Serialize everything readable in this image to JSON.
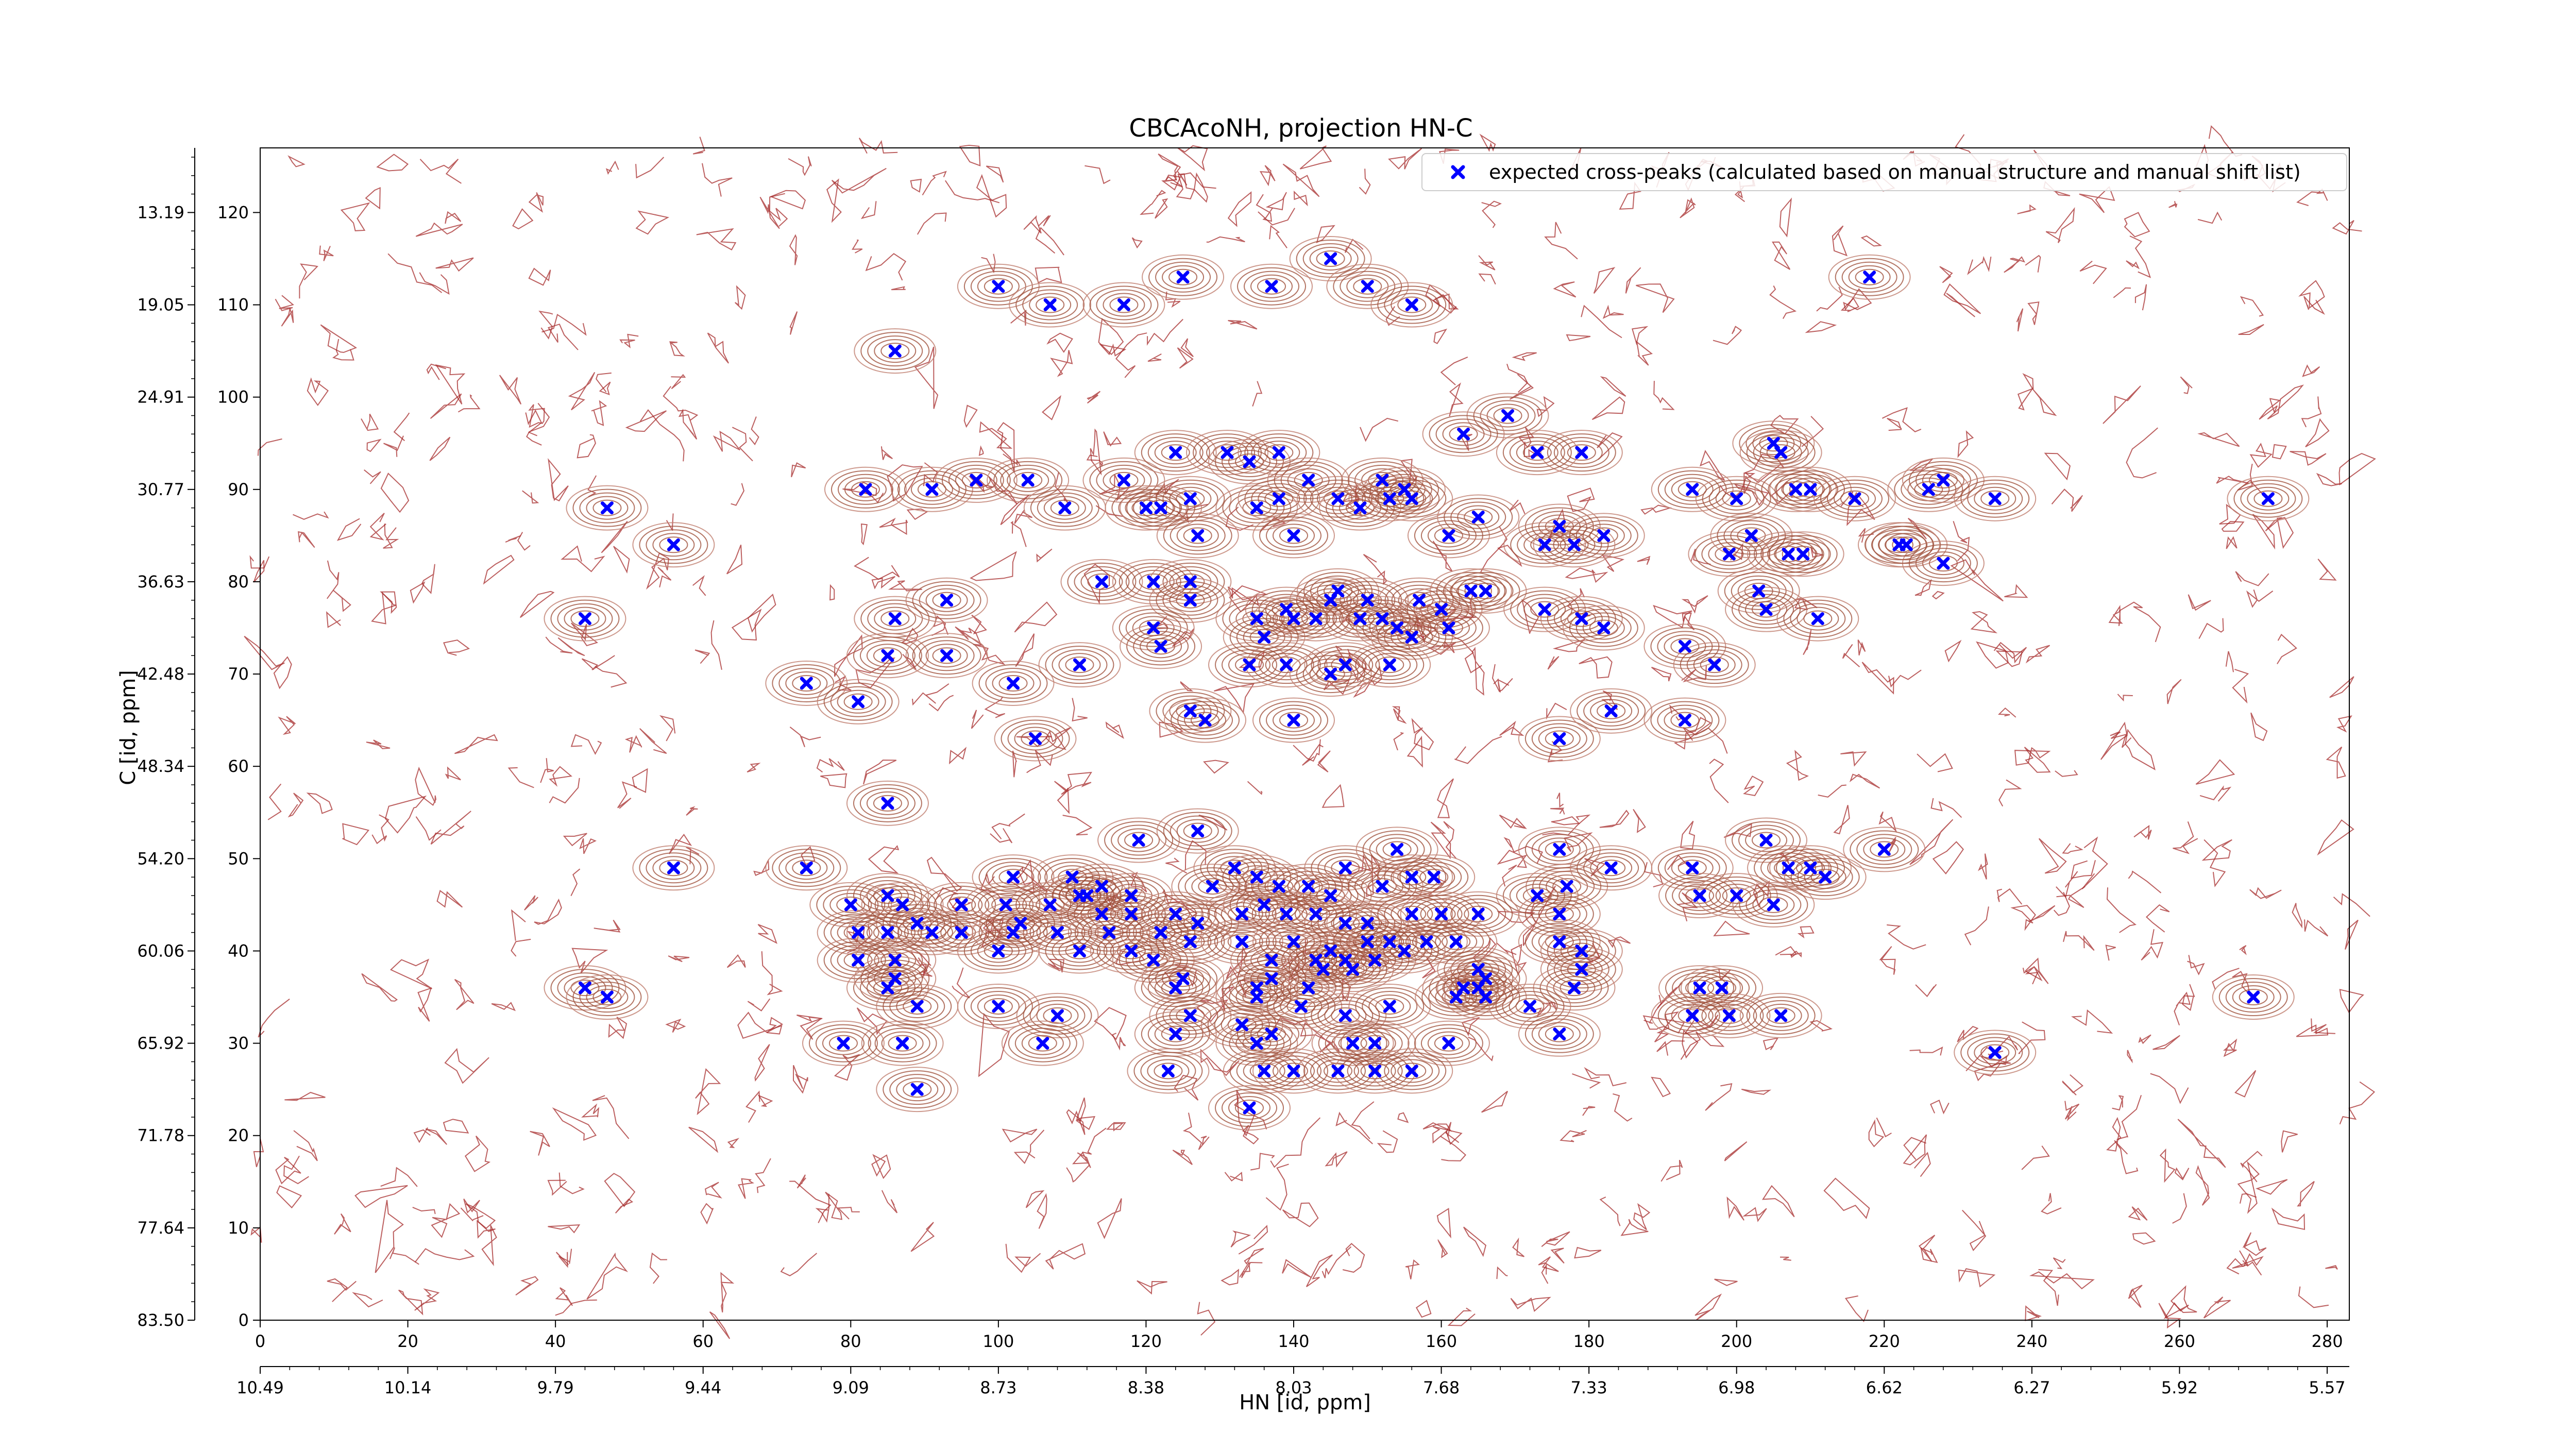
{
  "chart_data": {
    "type": "scatter",
    "title": "CBCAcoNH, projection HN-C",
    "xlabel": "HN [id, ppm]",
    "ylabel": "C [id, ppm]",
    "xlim": [
      0,
      283
    ],
    "ylim": [
      0,
      127
    ],
    "x_ticks": [
      0,
      20,
      40,
      60,
      80,
      100,
      120,
      140,
      160,
      180,
      200,
      220,
      240,
      260,
      280
    ],
    "y_ticks": [
      0,
      10,
      20,
      30,
      40,
      50,
      60,
      70,
      80,
      90,
      100,
      110,
      120
    ],
    "secondary_x_ticks": [
      {
        "at": 0,
        "label": "10.49"
      },
      {
        "at": 20,
        "label": "10.14"
      },
      {
        "at": 40,
        "label": "9.79"
      },
      {
        "at": 60,
        "label": "9.44"
      },
      {
        "at": 80,
        "label": "9.09"
      },
      {
        "at": 100,
        "label": "8.73"
      },
      {
        "at": 120,
        "label": "8.38"
      },
      {
        "at": 140,
        "label": "8.03"
      },
      {
        "at": 160,
        "label": "7.68"
      },
      {
        "at": 180,
        "label": "7.33"
      },
      {
        "at": 200,
        "label": "6.98"
      },
      {
        "at": 220,
        "label": "6.62"
      },
      {
        "at": 240,
        "label": "6.27"
      },
      {
        "at": 260,
        "label": "5.92"
      },
      {
        "at": 280,
        "label": "5.57"
      }
    ],
    "secondary_y_ticks": [
      {
        "at": 0,
        "label": "83.50"
      },
      {
        "at": 10,
        "label": "77.64"
      },
      {
        "at": 20,
        "label": "71.78"
      },
      {
        "at": 30,
        "label": "65.92"
      },
      {
        "at": 40,
        "label": "60.06"
      },
      {
        "at": 50,
        "label": "54.20"
      },
      {
        "at": 60,
        "label": "48.34"
      },
      {
        "at": 70,
        "label": "42.48"
      },
      {
        "at": 80,
        "label": "36.63"
      },
      {
        "at": 90,
        "label": "30.77"
      },
      {
        "at": 100,
        "label": "24.91"
      },
      {
        "at": 110,
        "label": "19.05"
      },
      {
        "at": 120,
        "label": "13.19"
      }
    ],
    "series": [
      {
        "name": "expected cross-peaks (calculated based on manual structure and manual shift list)",
        "color": "#0000ff",
        "marker": "x",
        "points": [
          [
            100,
            112
          ],
          [
            107,
            110
          ],
          [
            117,
            110
          ],
          [
            125,
            113
          ],
          [
            137,
            112
          ],
          [
            145,
            115
          ],
          [
            150,
            112
          ],
          [
            156,
            110
          ],
          [
            218,
            113
          ],
          [
            86,
            105
          ],
          [
            169,
            98
          ],
          [
            163,
            96
          ],
          [
            179,
            94
          ],
          [
            173,
            94
          ],
          [
            205,
            95
          ],
          [
            206,
            94
          ],
          [
            82,
            90
          ],
          [
            91,
            90
          ],
          [
            97,
            91
          ],
          [
            104,
            91
          ],
          [
            117,
            91
          ],
          [
            124,
            94
          ],
          [
            131,
            94
          ],
          [
            134,
            93
          ],
          [
            138,
            94
          ],
          [
            142,
            91
          ],
          [
            152,
            91
          ],
          [
            155,
            90
          ],
          [
            126,
            89
          ],
          [
            109,
            88
          ],
          [
            120,
            88
          ],
          [
            122,
            88
          ],
          [
            135,
            88
          ],
          [
            138,
            89
          ],
          [
            146,
            89
          ],
          [
            149,
            88
          ],
          [
            153,
            89
          ],
          [
            156,
            89
          ],
          [
            127,
            85
          ],
          [
            140,
            85
          ],
          [
            161,
            85
          ],
          [
            165,
            87
          ],
          [
            176,
            86
          ],
          [
            182,
            85
          ],
          [
            56,
            84
          ],
          [
            47,
            88
          ],
          [
            174,
            84
          ],
          [
            178,
            84
          ],
          [
            194,
            90
          ],
          [
            200,
            89
          ],
          [
            208,
            90
          ],
          [
            210,
            90
          ],
          [
            216,
            89
          ],
          [
            226,
            90
          ],
          [
            228,
            91
          ],
          [
            235,
            89
          ],
          [
            272,
            89
          ],
          [
            199,
            83
          ],
          [
            202,
            85
          ],
          [
            207,
            83
          ],
          [
            209,
            83
          ],
          [
            223,
            84
          ],
          [
            228,
            82
          ],
          [
            222,
            84
          ],
          [
            114,
            80
          ],
          [
            121,
            80
          ],
          [
            126,
            80
          ],
          [
            126,
            78
          ],
          [
            139,
            77
          ],
          [
            145,
            78
          ],
          [
            146,
            79
          ],
          [
            150,
            78
          ],
          [
            157,
            78
          ],
          [
            160,
            77
          ],
          [
            164,
            79
          ],
          [
            166,
            79
          ],
          [
            174,
            77
          ],
          [
            179,
            76
          ],
          [
            182,
            75
          ],
          [
            44,
            76
          ],
          [
            86,
            76
          ],
          [
            93,
            78
          ],
          [
            85,
            72
          ],
          [
            93,
            72
          ],
          [
            203,
            79
          ],
          [
            204,
            77
          ],
          [
            211,
            76
          ],
          [
            121,
            75
          ],
          [
            122,
            73
          ],
          [
            135,
            76
          ],
          [
            136,
            74
          ],
          [
            140,
            76
          ],
          [
            143,
            76
          ],
          [
            149,
            76
          ],
          [
            152,
            76
          ],
          [
            154,
            75
          ],
          [
            156,
            74
          ],
          [
            161,
            75
          ],
          [
            111,
            71
          ],
          [
            134,
            71
          ],
          [
            139,
            71
          ],
          [
            145,
            70
          ],
          [
            147,
            71
          ],
          [
            153,
            71
          ],
          [
            74,
            69
          ],
          [
            102,
            69
          ],
          [
            81,
            67
          ],
          [
            193,
            73
          ],
          [
            197,
            71
          ],
          [
            126,
            66
          ],
          [
            128,
            65
          ],
          [
            140,
            65
          ],
          [
            105,
            63
          ],
          [
            176,
            63
          ],
          [
            183,
            66
          ],
          [
            193,
            65
          ],
          [
            85,
            56
          ],
          [
            74,
            49
          ],
          [
            56,
            49
          ],
          [
            119,
            52
          ],
          [
            127,
            53
          ],
          [
            132,
            49
          ],
          [
            135,
            48
          ],
          [
            138,
            47
          ],
          [
            142,
            47
          ],
          [
            147,
            49
          ],
          [
            154,
            51
          ],
          [
            156,
            48
          ],
          [
            102,
            48
          ],
          [
            110,
            48
          ],
          [
            129,
            47
          ],
          [
            111,
            46
          ],
          [
            114,
            47
          ],
          [
            118,
            46
          ],
          [
            145,
            46
          ],
          [
            152,
            47
          ],
          [
            159,
            48
          ],
          [
            176,
            51
          ],
          [
            177,
            47
          ],
          [
            173,
            46
          ],
          [
            183,
            49
          ],
          [
            194,
            49
          ],
          [
            204,
            52
          ],
          [
            207,
            49
          ],
          [
            210,
            49
          ],
          [
            212,
            48
          ],
          [
            220,
            51
          ],
          [
            80,
            45
          ],
          [
            85,
            46
          ],
          [
            87,
            45
          ],
          [
            89,
            43
          ],
          [
            95,
            45
          ],
          [
            101,
            45
          ],
          [
            103,
            43
          ],
          [
            107,
            45
          ],
          [
            112,
            46
          ],
          [
            114,
            44
          ],
          [
            118,
            44
          ],
          [
            124,
            44
          ],
          [
            127,
            43
          ],
          [
            133,
            44
          ],
          [
            136,
            45
          ],
          [
            139,
            44
          ],
          [
            143,
            44
          ],
          [
            147,
            43
          ],
          [
            150,
            43
          ],
          [
            156,
            44
          ],
          [
            160,
            44
          ],
          [
            165,
            44
          ],
          [
            176,
            44
          ],
          [
            195,
            46
          ],
          [
            200,
            46
          ],
          [
            205,
            45
          ],
          [
            81,
            42
          ],
          [
            85,
            42
          ],
          [
            91,
            42
          ],
          [
            95,
            42
          ],
          [
            102,
            42
          ],
          [
            108,
            42
          ],
          [
            115,
            42
          ],
          [
            122,
            42
          ],
          [
            126,
            41
          ],
          [
            133,
            41
          ],
          [
            140,
            41
          ],
          [
            145,
            40
          ],
          [
            150,
            41
          ],
          [
            153,
            41
          ],
          [
            158,
            41
          ],
          [
            162,
            41
          ],
          [
            81,
            39
          ],
          [
            86,
            39
          ],
          [
            100,
            40
          ],
          [
            111,
            40
          ],
          [
            118,
            40
          ],
          [
            137,
            39
          ],
          [
            143,
            39
          ],
          [
            147,
            39
          ],
          [
            151,
            39
          ],
          [
            155,
            40
          ],
          [
            176,
            41
          ],
          [
            179,
            40
          ],
          [
            85,
            36
          ],
          [
            86,
            37
          ],
          [
            121,
            39
          ],
          [
            124,
            36
          ],
          [
            125,
            37
          ],
          [
            135,
            36
          ],
          [
            137,
            37
          ],
          [
            142,
            36
          ],
          [
            144,
            38
          ],
          [
            148,
            38
          ],
          [
            163,
            36
          ],
          [
            165,
            38
          ],
          [
            166,
            37
          ],
          [
            179,
            38
          ],
          [
            178,
            36
          ],
          [
            44,
            36
          ],
          [
            47,
            35
          ],
          [
            89,
            34
          ],
          [
            100,
            34
          ],
          [
            108,
            33
          ],
          [
            126,
            33
          ],
          [
            133,
            32
          ],
          [
            135,
            35
          ],
          [
            141,
            34
          ],
          [
            147,
            33
          ],
          [
            153,
            34
          ],
          [
            162,
            35
          ],
          [
            165,
            36
          ],
          [
            166,
            35
          ],
          [
            172,
            34
          ],
          [
            195,
            36
          ],
          [
            198,
            36
          ],
          [
            199,
            33
          ],
          [
            206,
            33
          ],
          [
            87,
            30
          ],
          [
            79,
            30
          ],
          [
            106,
            30
          ],
          [
            124,
            31
          ],
          [
            135,
            30
          ],
          [
            137,
            31
          ],
          [
            148,
            30
          ],
          [
            151,
            30
          ],
          [
            161,
            30
          ],
          [
            176,
            31
          ],
          [
            194,
            33
          ],
          [
            123,
            27
          ],
          [
            136,
            27
          ],
          [
            140,
            27
          ],
          [
            146,
            27
          ],
          [
            151,
            27
          ],
          [
            156,
            27
          ],
          [
            235,
            29
          ],
          [
            270,
            35
          ],
          [
            89,
            25
          ],
          [
            134,
            23
          ]
        ]
      }
    ]
  }
}
